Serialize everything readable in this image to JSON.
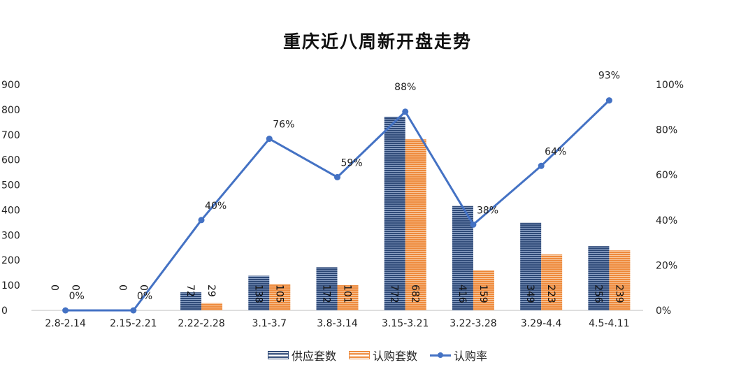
{
  "chart_data": {
    "type": "bar",
    "title": "重庆近八周新开盘走势",
    "categories": [
      "2.8-2.14",
      "2.15-2.21",
      "2.22-2.28",
      "3.1-3.7",
      "3.8-3.14",
      "3.15-3.21",
      "3.22-3.28",
      "3.29-4.4",
      "4.5-4.11"
    ],
    "series": [
      {
        "name": "供应套数",
        "kind": "bar",
        "axis": "left",
        "color": "#2f4a78",
        "values": [
          0,
          0,
          72,
          138,
          172,
          772,
          416,
          349,
          256
        ]
      },
      {
        "name": "认购套数",
        "kind": "bar",
        "axis": "left",
        "color": "#ee8a3c",
        "values": [
          0,
          0,
          29,
          105,
          101,
          682,
          159,
          223,
          239
        ]
      },
      {
        "name": "认购率",
        "kind": "line",
        "axis": "right",
        "color": "#4472c4",
        "values": [
          0,
          0,
          40,
          76,
          59,
          88,
          38,
          64,
          93
        ],
        "labels": [
          "0%",
          "0%",
          "40%",
          "76%",
          "59%",
          "88%",
          "38%",
          "64%",
          "93%"
        ]
      }
    ],
    "ylim": [
      0,
      900
    ],
    "yticks": [
      "0",
      "100",
      "200",
      "300",
      "400",
      "500",
      "600",
      "700",
      "800",
      "900"
    ],
    "y2lim": [
      0,
      100
    ],
    "y2ticks": [
      "0%",
      "20%",
      "40%",
      "60%",
      "80%",
      "100%"
    ],
    "grid": false,
    "legend_position": "bottom"
  }
}
